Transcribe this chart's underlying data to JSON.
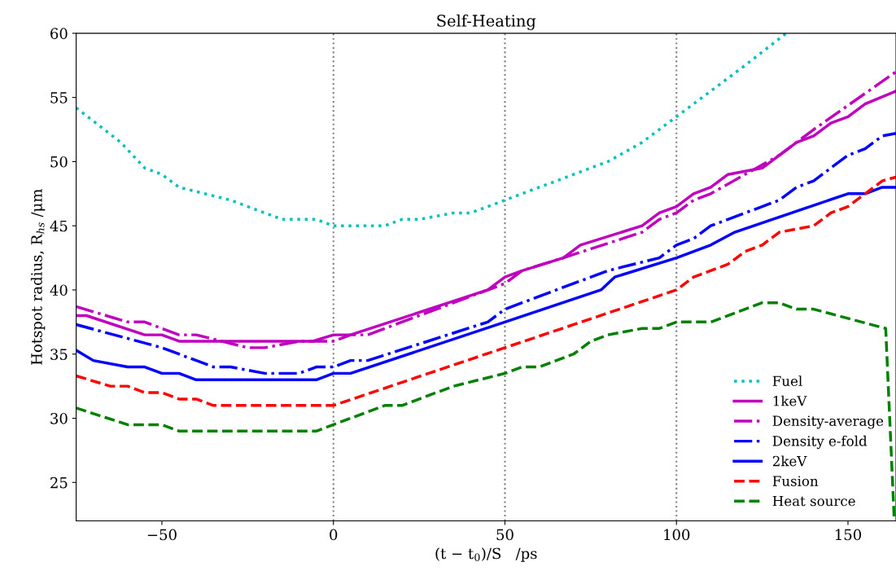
{
  "chart_data": {
    "type": "line",
    "title": "Self-Heating",
    "xlabel": "(t − t$_{0}$)/S   /ps",
    "ylabel": "Hotspot radius, R$_{hs}$ /μm",
    "xlim": [
      -75,
      164
    ],
    "ylim": [
      22,
      60
    ],
    "xticks": [
      {
        "value": -50,
        "label": "−50"
      },
      0,
      50,
      100,
      150
    ],
    "yticks": [
      25,
      30,
      35,
      40,
      45,
      50,
      55,
      60
    ],
    "grid": false,
    "legend": "bottom right",
    "marker": "none",
    "ref_lines": [
      {
        "axis": "x",
        "value": 0,
        "color": "#808080",
        "line_style": "dotted"
      },
      {
        "axis": "x",
        "value": 50,
        "color": "#808080",
        "line_style": "dotted"
      },
      {
        "axis": "x",
        "value": 100,
        "color": "#808080",
        "line_style": "dotted"
      }
    ],
    "series": [
      {
        "name": "Fuel",
        "color": "#00bfbf",
        "line_style": "dotted",
        "x": [
          -75,
          -62,
          -55,
          -50,
          -45,
          -30,
          -20,
          -15,
          -5,
          0,
          15,
          20,
          25,
          35,
          40,
          50,
          60,
          65,
          75,
          80,
          90,
          100,
          110,
          120,
          132
        ],
        "values": [
          54.2,
          51.5,
          49.5,
          49,
          48,
          47,
          46,
          45.5,
          45.5,
          45,
          45,
          45.5,
          45.5,
          46,
          46,
          47,
          48,
          48.5,
          49.5,
          50,
          51.5,
          53.5,
          55.5,
          57.5,
          60
        ]
      },
      {
        "name": "1keV",
        "color": "#bf00bf",
        "line_style": "solid",
        "x": [
          -75,
          -72,
          -55,
          -50,
          -45,
          -6,
          0,
          5,
          45,
          50,
          55,
          67,
          72,
          90,
          95,
          100,
          105,
          110,
          115,
          125,
          135,
          140,
          145,
          150,
          155,
          164
        ],
        "values": [
          38,
          38,
          36.5,
          36.5,
          36,
          36,
          36.5,
          36.5,
          40,
          41,
          41.5,
          42.5,
          43.5,
          45,
          46,
          46.5,
          47.5,
          48,
          49,
          49.5,
          51.5,
          52,
          53,
          53.5,
          54.5,
          55.5
        ]
      },
      {
        "name": "Density-average",
        "color": "#bf00bf",
        "line_style": "dashdot",
        "x": [
          -75,
          -60,
          -55,
          -45,
          -40,
          -25,
          -20,
          -10,
          0,
          5,
          10,
          50,
          55,
          67,
          90,
          95,
          100,
          105,
          110,
          130,
          140,
          164
        ],
        "values": [
          38.7,
          37.5,
          37.5,
          36.5,
          36.5,
          35.5,
          35.5,
          36,
          36,
          36.5,
          36.5,
          40.5,
          41.5,
          42.5,
          44.5,
          45.5,
          46,
          47,
          47.5,
          50.5,
          52.5,
          57
        ]
      },
      {
        "name": "Density e-fold",
        "color": "#0000ff",
        "line_style": "dashdot",
        "x": [
          -75,
          -50,
          -45,
          -35,
          -30,
          -20,
          -10,
          -5,
          0,
          5,
          10,
          45,
          50,
          65,
          80,
          95,
          100,
          105,
          110,
          115,
          125,
          130,
          135,
          140,
          150,
          155,
          160,
          164
        ],
        "values": [
          37.3,
          35.5,
          35,
          34,
          34,
          33.5,
          33.5,
          34,
          34,
          34.5,
          34.5,
          37.5,
          38.5,
          40,
          41.5,
          42.5,
          43.5,
          44,
          45,
          45.5,
          46.5,
          47,
          48,
          48.5,
          50.5,
          51,
          52,
          52.2
        ]
      },
      {
        "name": "2keV",
        "color": "#0000ff",
        "line_style": "solid",
        "x": [
          -75,
          -70,
          -60,
          -55,
          -50,
          -45,
          -40,
          -5,
          0,
          5,
          50,
          78,
          82,
          100,
          110,
          117,
          150,
          155,
          160,
          164
        ],
        "values": [
          35.3,
          34.5,
          34,
          34,
          33.5,
          33.5,
          33,
          33,
          33.5,
          33.5,
          37.5,
          40,
          41,
          42.5,
          43.5,
          44.5,
          47.5,
          47.5,
          48,
          48
        ]
      },
      {
        "name": "Fusion",
        "color": "#ff0000",
        "line_style": "dashed",
        "x": [
          -75,
          -65,
          -60,
          -55,
          -50,
          -45,
          -40,
          -35,
          0,
          50,
          100,
          105,
          115,
          120,
          125,
          130,
          140,
          145,
          150,
          155,
          160,
          164
        ],
        "values": [
          33.3,
          32.5,
          32.5,
          32,
          32,
          31.5,
          31.5,
          31,
          31,
          35.5,
          40,
          41,
          42,
          43,
          43.5,
          44.5,
          45,
          46,
          46.5,
          47.5,
          48.5,
          48.8
        ]
      },
      {
        "name": "Heat source",
        "color": "#008000",
        "line_style": "dashed",
        "x": [
          -75,
          -60,
          -50,
          -45,
          -5,
          0,
          15,
          20,
          30,
          35,
          50,
          55,
          60,
          70,
          75,
          80,
          90,
          95,
          100,
          110,
          125,
          130,
          135,
          140,
          161,
          163.5
        ],
        "values": [
          30.8,
          29.5,
          29.5,
          29,
          29,
          29.5,
          31,
          31,
          32,
          32.5,
          33.5,
          34,
          34,
          35,
          36,
          36.5,
          37,
          37,
          37.5,
          37.5,
          39,
          39,
          38.5,
          38.5,
          37,
          22
        ]
      }
    ]
  }
}
